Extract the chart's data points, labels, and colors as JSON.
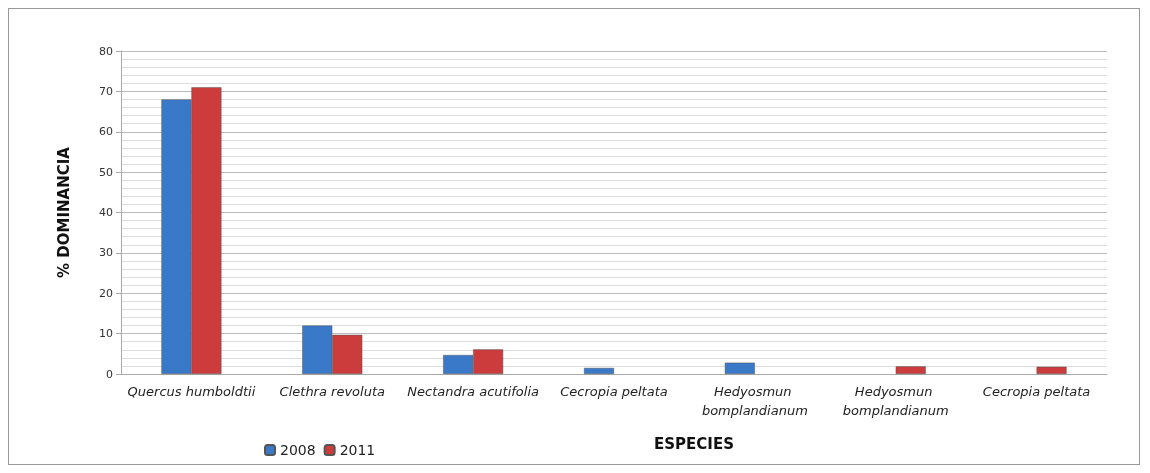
{
  "chart_data": {
    "type": "bar",
    "xlabel": "ESPECIES",
    "ylabel": "% DOMINANCIA",
    "categories": [
      "Quercus humboldtii",
      "Clethra revoluta",
      "Nectandra acutifolia",
      "Cecropia peltata",
      "Hedyosmun bomplandianum",
      "Hedyosmun bomplandianum",
      "Cecropia peltata"
    ],
    "series": [
      {
        "name": "2008",
        "color": "#3a78c8",
        "values": [
          68,
          12,
          4.7,
          1.5,
          2.8,
          null,
          null
        ]
      },
      {
        "name": "2011",
        "color": "#cc3c3c",
        "values": [
          71,
          9.7,
          6.1,
          null,
          null,
          1.9,
          1.8
        ]
      }
    ],
    "ylim": [
      0,
      80
    ],
    "yticks": [
      0,
      10,
      20,
      30,
      40,
      50,
      60,
      70,
      80
    ],
    "grid": "y",
    "legend": "bottom"
  }
}
